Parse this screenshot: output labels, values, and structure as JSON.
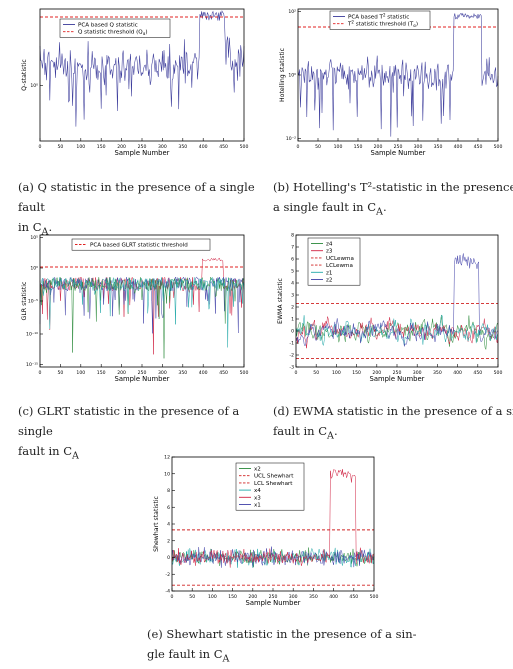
{
  "figures": [
    {
      "id": "a",
      "caption_line1": "(a) Q statistic in the presence of a single fault",
      "caption_line2": "in C",
      "caption_sub": "A",
      "caption_tail": "."
    },
    {
      "id": "b",
      "caption_line1": "(b) Hotelling's T²-statistic in the presence o",
      "caption_line2": "a single fault in C",
      "caption_sub": "A",
      "caption_tail": "."
    },
    {
      "id": "c",
      "caption_line1": "(c) GLRT statistic in the presence of a single",
      "caption_line2": "fault in C",
      "caption_sub": "A",
      "caption_tail": ""
    },
    {
      "id": "d",
      "caption_line1": "(d) EWMA statistic in the presence of a singl",
      "caption_line2": "fault in C",
      "caption_sub": "A",
      "caption_tail": "."
    },
    {
      "id": "e",
      "caption_line1": "(e) Shewhart statistic in the presence of a sin-",
      "caption_line2": "gle fault in C",
      "caption_sub": "A",
      "caption_tail": ""
    }
  ],
  "chart_data": [
    {
      "type": "line",
      "panel": "a",
      "xlabel": "Sample Number",
      "ylabel": "Q-statistic",
      "xlim": [
        0,
        500
      ],
      "x_ticks": [
        0,
        50,
        100,
        150,
        200,
        250,
        300,
        350,
        400,
        450,
        500
      ],
      "y_scale": "log",
      "y_tick_labels": [
        "10⁰"
      ],
      "legend_placement": "top-left",
      "series": [
        {
          "name": "PCA based Q statistic",
          "color": "#3a3a9a",
          "style": "solid",
          "fault_segment": [
            400,
            450
          ]
        },
        {
          "name": "Q statistic threshold (Q",
          "name_sub": "α",
          "name_tail": ")",
          "color": "#e02020",
          "style": "dashed"
        }
      ]
    },
    {
      "type": "line",
      "panel": "b",
      "xlabel": "Sample Number",
      "ylabel": "Hotelling statistic",
      "xlim": [
        0,
        500
      ],
      "x_ticks": [
        0,
        50,
        100,
        150,
        200,
        250,
        300,
        350,
        400,
        450,
        500
      ],
      "y_scale": "log",
      "y_tick_labels": [
        "10²",
        "10⁰",
        "10⁻²"
      ],
      "legend_placement": "top-center",
      "series": [
        {
          "name": "PCA based T",
          "name_sup": "2",
          "name_tail": " statistic",
          "color": "#3a3a9a",
          "style": "solid",
          "fault_segment": [
            400,
            450
          ]
        },
        {
          "name": "T",
          "name_sup": "2",
          "name_tail": " statistic threshold (T",
          "name_sub": "α",
          "name_end": ")",
          "color": "#e02020",
          "style": "dashed"
        }
      ]
    },
    {
      "type": "line",
      "panel": "c",
      "xlabel": "Sample Number",
      "ylabel": "GLR statistic",
      "xlim": [
        0,
        500
      ],
      "x_ticks": [
        0,
        50,
        100,
        150,
        200,
        250,
        300,
        350,
        400,
        450,
        500
      ],
      "y_scale": "log",
      "y_tick_labels": [
        "10⁵",
        "10⁰",
        "10⁻⁵",
        "10⁻¹⁰",
        "10⁻¹⁵"
      ],
      "legend_placement": "top",
      "series": [
        {
          "name": "PCA based GLRT statistic threshold",
          "color": "#e02020",
          "style": "dashed"
        }
      ]
    },
    {
      "type": "line",
      "panel": "d",
      "xlabel": "Sample Number",
      "ylabel": "EWMA statistic",
      "xlim": [
        0,
        500
      ],
      "ylim": [
        -3,
        8
      ],
      "x_ticks": [
        0,
        50,
        100,
        150,
        200,
        250,
        300,
        350,
        400,
        450,
        500
      ],
      "y_ticks": [
        -3,
        -2,
        -1,
        0,
        1,
        2,
        3,
        4,
        5,
        6,
        7,
        8
      ],
      "legend_placement": "top-left",
      "series": [
        {
          "name": "z4",
          "color": "#2a8a3a",
          "style": "solid"
        },
        {
          "name": "z3",
          "color": "#d02040",
          "style": "solid"
        },
        {
          "name": "UCLewma",
          "color": "#d02020",
          "style": "dashed"
        },
        {
          "name": "LCLewma",
          "color": "#d02020",
          "style": "dashed"
        },
        {
          "name": "z1",
          "color": "#20a8a8",
          "style": "solid"
        },
        {
          "name": "z2",
          "color": "#4040a8",
          "style": "solid"
        }
      ],
      "control_limits": {
        "UCL": 2.3,
        "LCL": -2.3
      }
    },
    {
      "type": "line",
      "panel": "e",
      "xlabel": "Sample Number",
      "ylabel": "Shewhart statistic",
      "xlim": [
        0,
        500
      ],
      "ylim": [
        -4,
        12
      ],
      "x_ticks": [
        0,
        50,
        100,
        150,
        200,
        250,
        300,
        350,
        400,
        450,
        500
      ],
      "y_ticks": [
        -4,
        -2,
        0,
        2,
        4,
        6,
        8,
        10,
        12
      ],
      "legend_placement": "top-center",
      "series": [
        {
          "name": "x2",
          "color": "#2a8a3a",
          "style": "solid"
        },
        {
          "name": "UCL Shewhart",
          "color": "#d02020",
          "style": "dashed"
        },
        {
          "name": "LCL Shewhart",
          "color": "#d02020",
          "style": "dashed"
        },
        {
          "name": "x4",
          "color": "#20a8a8",
          "style": "solid"
        },
        {
          "name": "x3",
          "color": "#d02040",
          "style": "solid"
        },
        {
          "name": "x1",
          "color": "#4040a8",
          "style": "solid"
        }
      ],
      "control_limits": {
        "UCL": 3.3,
        "LCL": -3.3
      }
    }
  ]
}
